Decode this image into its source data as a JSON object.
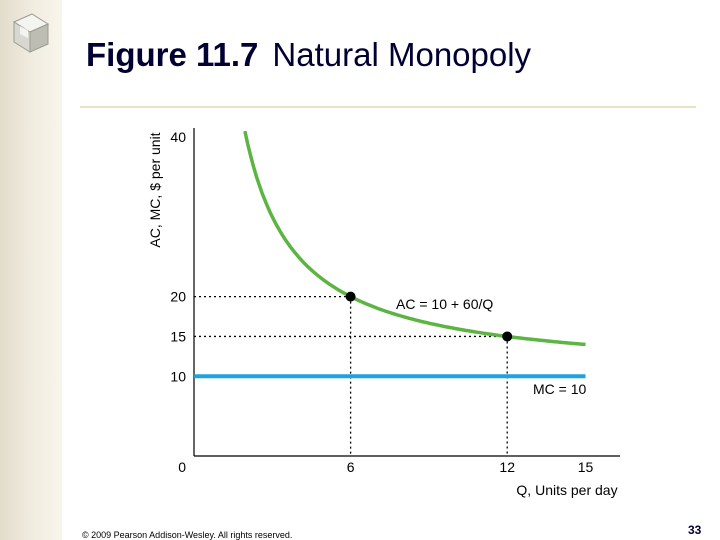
{
  "slide": {
    "title_number": "Figure 11.7",
    "title_text": "Natural Monopoly",
    "footer": "© 2009 Pearson Addison-Wesley. All rights reserved.",
    "page_number": "33"
  },
  "chart_data": {
    "type": "line",
    "ylabel": "AC, MC, $ per unit",
    "xlabel": "Q, Units per day",
    "xlim": [
      0,
      15
    ],
    "ylim": [
      0,
      40
    ],
    "x_ticks": [
      "0",
      "6",
      "12",
      "15"
    ],
    "y_ticks": [
      "10",
      "15",
      "20",
      "40"
    ],
    "grid": false,
    "series": [
      {
        "name": "AC = 10 + 60/Q",
        "color": "#5cb443",
        "x_range": [
          1.95,
          15
        ],
        "formula": "10 + 60/Q"
      },
      {
        "name": "MC = 10",
        "color": "#1fa3e0",
        "x": [
          0,
          15
        ],
        "y": [
          10,
          10
        ]
      }
    ],
    "points": [
      {
        "x": 6,
        "y": 20
      },
      {
        "x": 12,
        "y": 15
      }
    ]
  }
}
